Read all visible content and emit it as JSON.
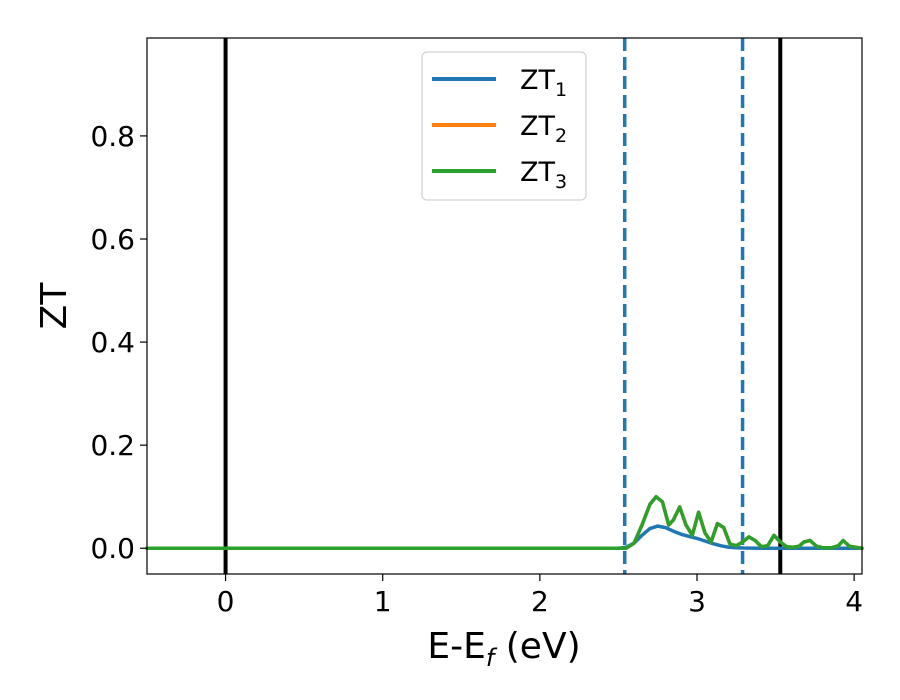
{
  "chart_data": {
    "type": "line",
    "xlabel": {
      "main": "E-E",
      "sub": "f",
      "suffix": " (eV)"
    },
    "ylabel": "ZT",
    "xlim": [
      -0.5,
      4.05
    ],
    "ylim": [
      -0.05,
      0.99
    ],
    "xticks": [
      {
        "value": 0,
        "label": "0"
      },
      {
        "value": 1,
        "label": "1"
      },
      {
        "value": 2,
        "label": "2"
      },
      {
        "value": 3,
        "label": "3"
      },
      {
        "value": 4,
        "label": "4"
      }
    ],
    "yticks": [
      {
        "value": 0.0,
        "label": "0.0"
      },
      {
        "value": 0.2,
        "label": "0.2"
      },
      {
        "value": 0.4,
        "label": "0.4"
      },
      {
        "value": 0.6,
        "label": "0.6"
      },
      {
        "value": 0.8,
        "label": "0.8"
      }
    ],
    "grid": false,
    "legend_position": "upper-center",
    "series": [
      {
        "name": "ZT",
        "subscript": "1",
        "color": "#1f77b4",
        "x": [
          -0.5,
          2.5,
          2.55,
          2.6,
          2.65,
          2.7,
          2.75,
          2.8,
          2.85,
          2.9,
          2.95,
          3.0,
          3.05,
          3.1,
          3.15,
          3.2,
          3.25,
          3.3,
          3.4,
          3.5,
          3.6,
          3.7,
          3.8,
          3.9,
          4.05
        ],
        "y": [
          0,
          0,
          0.002,
          0.01,
          0.025,
          0.038,
          0.043,
          0.04,
          0.033,
          0.027,
          0.023,
          0.019,
          0.014,
          0.009,
          0.005,
          0.002,
          0.001,
          0.0005,
          0,
          0,
          0,
          0,
          0,
          0,
          0
        ]
      },
      {
        "name": "ZT",
        "subscript": "2",
        "color": "#ff7f0e",
        "x": [
          -0.5,
          2.55,
          2.6,
          2.65,
          2.7,
          2.74,
          2.78,
          2.82,
          2.85,
          2.89,
          2.93,
          2.97,
          3.01,
          3.05,
          3.09,
          3.13,
          3.17,
          3.21,
          3.25,
          3.29,
          3.33,
          3.37,
          3.41,
          3.45,
          3.49,
          3.53,
          3.57,
          3.61,
          3.65,
          3.68,
          3.72,
          3.76,
          3.8,
          3.86,
          3.9,
          3.93,
          3.97,
          4.05
        ],
        "y": [
          0,
          0,
          0.01,
          0.045,
          0.085,
          0.1,
          0.09,
          0.045,
          0.055,
          0.08,
          0.045,
          0.025,
          0.07,
          0.03,
          0.012,
          0.048,
          0.04,
          0.008,
          0.005,
          0.012,
          0.022,
          0.015,
          0.003,
          0.005,
          0.025,
          0.012,
          0.003,
          0.002,
          0.004,
          0.012,
          0.015,
          0.004,
          0.001,
          0.001,
          0.005,
          0.015,
          0.004,
          0
        ]
      },
      {
        "name": "ZT",
        "subscript": "3",
        "color": "#2ca02c",
        "x": [
          -0.5,
          2.55,
          2.6,
          2.65,
          2.7,
          2.74,
          2.78,
          2.82,
          2.85,
          2.89,
          2.93,
          2.97,
          3.01,
          3.05,
          3.09,
          3.13,
          3.17,
          3.21,
          3.25,
          3.29,
          3.33,
          3.37,
          3.41,
          3.45,
          3.49,
          3.53,
          3.57,
          3.61,
          3.65,
          3.68,
          3.72,
          3.76,
          3.8,
          3.86,
          3.9,
          3.93,
          3.97,
          4.05
        ],
        "y": [
          0,
          0,
          0.01,
          0.045,
          0.085,
          0.1,
          0.09,
          0.045,
          0.055,
          0.08,
          0.045,
          0.025,
          0.07,
          0.03,
          0.012,
          0.048,
          0.04,
          0.008,
          0.005,
          0.012,
          0.022,
          0.015,
          0.003,
          0.005,
          0.025,
          0.012,
          0.003,
          0.002,
          0.004,
          0.012,
          0.015,
          0.004,
          0.001,
          0.001,
          0.005,
          0.015,
          0.004,
          0
        ]
      }
    ],
    "vlines": [
      {
        "x": 0.0,
        "style": "solid",
        "color": "#000000"
      },
      {
        "x": 3.53,
        "style": "solid",
        "color": "#000000"
      },
      {
        "x": 2.54,
        "style": "dashed",
        "color": "#1f77b4"
      },
      {
        "x": 3.29,
        "style": "dashed",
        "color": "#1f77b4"
      }
    ]
  }
}
